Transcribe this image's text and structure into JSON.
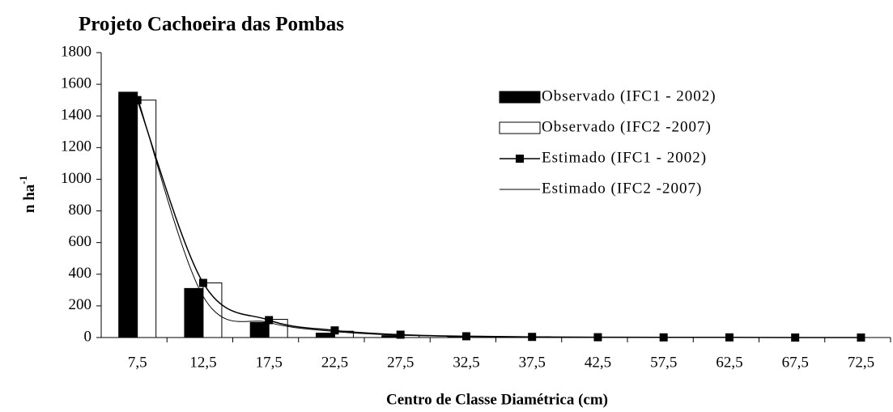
{
  "chart_data": {
    "type": "bar",
    "title": "Projeto Cachoeira das Pombas",
    "x_label": "Centro de Classe Diamétrica (cm)",
    "y_label": "n ha",
    "y_label_sup": "-1",
    "categories": [
      "7,5",
      "12,5",
      "17,5",
      "22,5",
      "27,5",
      "32,5",
      "37,5",
      "42,5",
      "57,5",
      "62,5",
      "67,5",
      "72,5"
    ],
    "series": [
      {
        "name": "Observado (IFC1 - 2002)",
        "kind": "bar",
        "color": "#000000",
        "values": [
          1550,
          310,
          95,
          28,
          12,
          5,
          2,
          1,
          0,
          0,
          0,
          0
        ]
      },
      {
        "name": "Observado (IFC2 -2007)",
        "kind": "bar",
        "color": "#ffffff",
        "values": [
          1500,
          345,
          115,
          40,
          15,
          8,
          5,
          2,
          1,
          0,
          0,
          0
        ]
      },
      {
        "name": "Estimado (IFC1 - 2002)",
        "kind": "line-marker",
        "color": "#000000",
        "values": [
          1500,
          345,
          110,
          45,
          18,
          8,
          4,
          2,
          1,
          1,
          0,
          0
        ]
      },
      {
        "name": "Estimado (IFC2 -2007)",
        "kind": "line",
        "color": "#000000",
        "values": [
          1520,
          260,
          95,
          38,
          15,
          7,
          3,
          2,
          1,
          0,
          0,
          0
        ]
      }
    ],
    "ylim": [
      0,
      1800
    ],
    "yticks": [
      0,
      200,
      400,
      600,
      800,
      1000,
      1200,
      1400,
      1600,
      1800
    ],
    "grid": false,
    "legend": "upper right"
  }
}
